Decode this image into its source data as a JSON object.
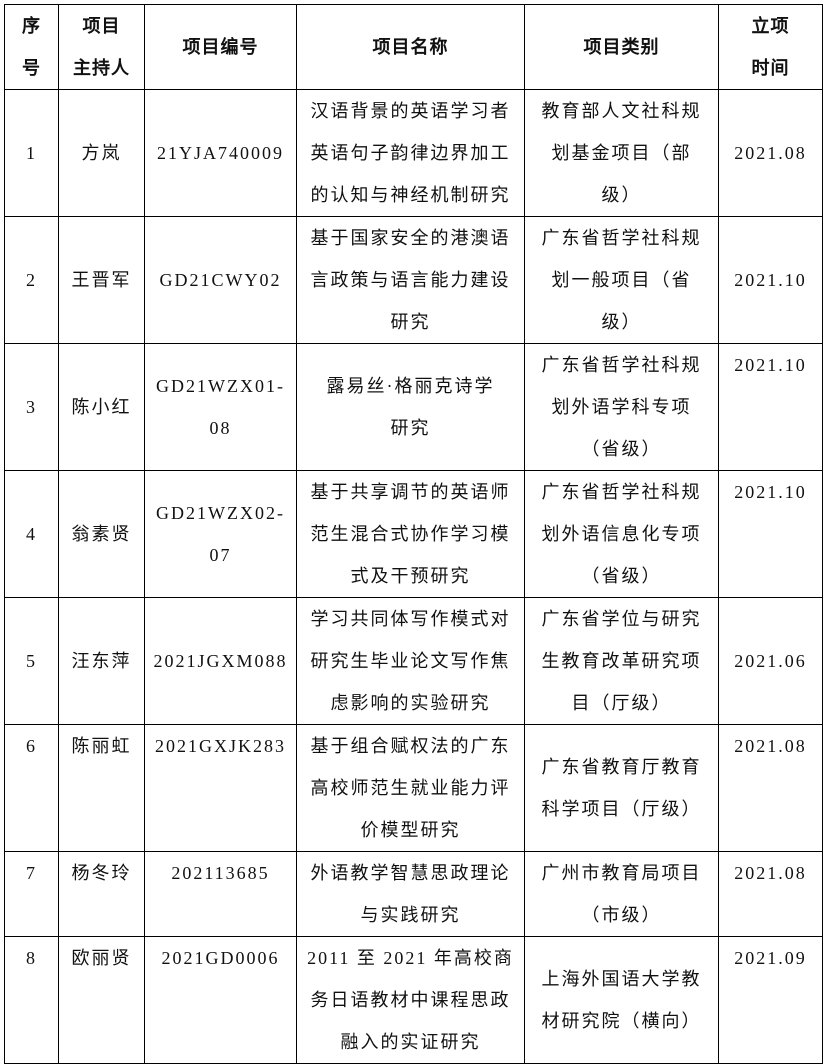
{
  "table": {
    "header": [
      [
        "序",
        "号"
      ],
      [
        "项目",
        "主持人"
      ],
      "项目编号",
      "项目名称",
      "项目类别",
      [
        "立项",
        "时间"
      ]
    ],
    "rows": [
      [
        "1",
        "方岚",
        "21YJA740009",
        [
          "汉语背景的英语学习者",
          "英语句子韵律边界加工",
          "的认知与神经机制研究"
        ],
        [
          "教育部人文社科规",
          "划基金项目（部",
          "级）"
        ],
        "2021.08"
      ],
      [
        "2",
        "王晋军",
        "GD21CWY02",
        [
          "基于国家安全的港澳语",
          "言政策与语言能力建设",
          "研究"
        ],
        [
          "广东省哲学社科规",
          "划一般项目（省",
          "级）"
        ],
        "2021.10"
      ],
      [
        "3",
        "陈小红",
        "GD21WZX01-08",
        [
          "露易丝·格丽克诗学",
          "研究"
        ],
        [
          "广东省哲学社科规",
          "划外语学科专项",
          "（省级）"
        ],
        "2021.10"
      ],
      [
        "4",
        "翁素贤",
        "GD21WZX02-07",
        [
          "基于共享调节的英语师",
          "范生混合式协作学习模",
          "式及干预研究"
        ],
        [
          "广东省哲学社科规",
          "划外语信息化专项",
          "（省级）"
        ],
        "2021.10"
      ],
      [
        "5",
        "汪东萍",
        "2021JGXM088",
        [
          "学习共同体写作模式对",
          "研究生毕业论文写作焦",
          "虑影响的实验研究"
        ],
        [
          "广东省学位与研究",
          "生教育改革研究项",
          "目（厅级）"
        ],
        "2021.06"
      ],
      [
        "6",
        "陈丽虹",
        "2021GXJK283",
        [
          "基于组合赋权法的广东",
          "高校师范生就业能力评",
          "价模型研究"
        ],
        [
          "广东省教育厅教育",
          "科学项目（厅级）"
        ],
        "2021.08"
      ],
      [
        "7",
        "杨冬玲",
        "202113685",
        [
          "外语教学智慧思政理论",
          "与实践研究"
        ],
        [
          "广州市教育局项目",
          "（市级）"
        ],
        "2021.08"
      ],
      [
        "8",
        "欧丽贤",
        "2021GD0006",
        [
          "2011 至 2021 年高校商",
          "务日语教材中课程思政",
          "融入的实证研究"
        ],
        [
          "上海外国语大学教",
          "材研究院（横向）"
        ],
        "2021.09"
      ]
    ]
  }
}
